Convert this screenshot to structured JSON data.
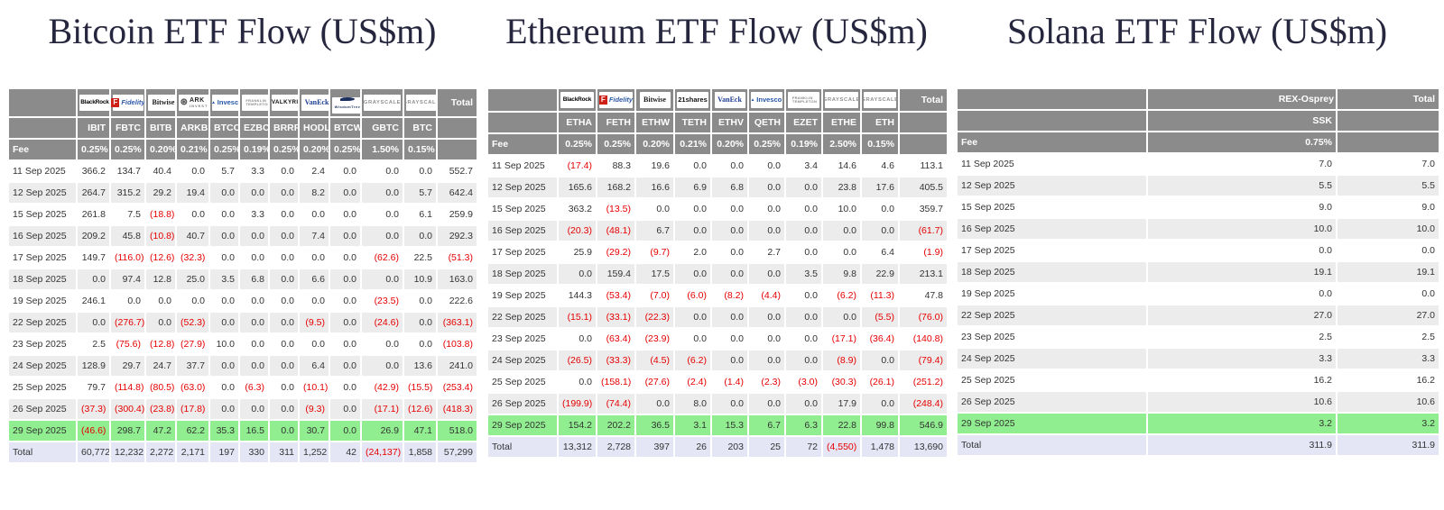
{
  "colors": {
    "header_gray": "#8b8b8b",
    "row_stripe": "#ececec",
    "highlight_green": "#90ee90",
    "total_row_lavender": "#e4e6f5",
    "negative_red": "#e60000",
    "title_navy": "#26263e"
  },
  "chart_data": [
    {
      "type": "table",
      "title": "Bitcoin ETF Flow (US$m)",
      "total_label": "Total",
      "fee_label": "Fee",
      "providers": [
        {
          "name": "BlackRock",
          "logo": "blackrock-logo"
        },
        {
          "name": "Fidelity",
          "logo": "fidelity-logo"
        },
        {
          "name": "Bitwise",
          "logo": "bitwise-logo"
        },
        {
          "name": "ARK Invest",
          "logo": "ark-invest-logo"
        },
        {
          "name": "Invesco",
          "logo": "invesco-logo"
        },
        {
          "name": "Franklin Templeton",
          "logo": "franklin-templeton-logo"
        },
        {
          "name": "Valkyrie",
          "logo": "valkyrie-logo"
        },
        {
          "name": "VanEck",
          "logo": "vaneck-logo"
        },
        {
          "name": "WisdomTree",
          "logo": "wisdomtree-logo"
        },
        {
          "name": "Grayscale",
          "logo": "grayscale-logo"
        },
        {
          "name": "Grayscale",
          "logo": "grayscale-logo"
        }
      ],
      "tickers": [
        "IBIT",
        "FBTC",
        "BITB",
        "ARKB",
        "BTCO",
        "EZBC",
        "BRRR",
        "HODL",
        "BTCW",
        "GBTC",
        "BTC"
      ],
      "fees": [
        "0.25%",
        "0.25%",
        "0.20%",
        "0.21%",
        "0.25%",
        "0.19%",
        "0.25%",
        "0.20%",
        "0.25%",
        "1.50%",
        "0.15%"
      ],
      "rows": [
        {
          "date": "11 Sep 2025",
          "values": [
            "366.2",
            "134.7",
            "40.4",
            "0.0",
            "5.7",
            "3.3",
            "0.0",
            "2.4",
            "0.0",
            "0.0",
            "0.0"
          ],
          "total": "552.7"
        },
        {
          "date": "12 Sep 2025",
          "values": [
            "264.7",
            "315.2",
            "29.2",
            "19.4",
            "0.0",
            "0.0",
            "0.0",
            "8.2",
            "0.0",
            "0.0",
            "5.7"
          ],
          "total": "642.4"
        },
        {
          "date": "15 Sep 2025",
          "values": [
            "261.8",
            "7.5",
            "(18.8)",
            "0.0",
            "0.0",
            "3.3",
            "0.0",
            "0.0",
            "0.0",
            "0.0",
            "6.1"
          ],
          "total": "259.9"
        },
        {
          "date": "16 Sep 2025",
          "values": [
            "209.2",
            "45.8",
            "(10.8)",
            "40.7",
            "0.0",
            "0.0",
            "0.0",
            "7.4",
            "0.0",
            "0.0",
            "0.0"
          ],
          "total": "292.3"
        },
        {
          "date": "17 Sep 2025",
          "values": [
            "149.7",
            "(116.0)",
            "(12.6)",
            "(32.3)",
            "0.0",
            "0.0",
            "0.0",
            "0.0",
            "0.0",
            "(62.6)",
            "22.5"
          ],
          "total": "(51.3)"
        },
        {
          "date": "18 Sep 2025",
          "values": [
            "0.0",
            "97.4",
            "12.8",
            "25.0",
            "3.5",
            "6.8",
            "0.0",
            "6.6",
            "0.0",
            "0.0",
            "10.9"
          ],
          "total": "163.0"
        },
        {
          "date": "19 Sep 2025",
          "values": [
            "246.1",
            "0.0",
            "0.0",
            "0.0",
            "0.0",
            "0.0",
            "0.0",
            "0.0",
            "0.0",
            "(23.5)",
            "0.0"
          ],
          "total": "222.6"
        },
        {
          "date": "22 Sep 2025",
          "values": [
            "0.0",
            "(276.7)",
            "0.0",
            "(52.3)",
            "0.0",
            "0.0",
            "0.0",
            "(9.5)",
            "0.0",
            "(24.6)",
            "0.0"
          ],
          "total": "(363.1)"
        },
        {
          "date": "23 Sep 2025",
          "values": [
            "2.5",
            "(75.6)",
            "(12.8)",
            "(27.9)",
            "10.0",
            "0.0",
            "0.0",
            "0.0",
            "0.0",
            "0.0",
            "0.0"
          ],
          "total": "(103.8)"
        },
        {
          "date": "24 Sep 2025",
          "values": [
            "128.9",
            "29.7",
            "24.7",
            "37.7",
            "0.0",
            "0.0",
            "0.0",
            "6.4",
            "0.0",
            "0.0",
            "13.6"
          ],
          "total": "241.0"
        },
        {
          "date": "25 Sep 2025",
          "values": [
            "79.7",
            "(114.8)",
            "(80.5)",
            "(63.0)",
            "0.0",
            "(6.3)",
            "0.0",
            "(10.1)",
            "0.0",
            "(42.9)",
            "(15.5)"
          ],
          "total": "(253.4)"
        },
        {
          "date": "26 Sep 2025",
          "values": [
            "(37.3)",
            "(300.4)",
            "(23.8)",
            "(17.8)",
            "0.0",
            "0.0",
            "0.0",
            "(9.3)",
            "0.0",
            "(17.1)",
            "(12.6)"
          ],
          "total": "(418.3)"
        },
        {
          "date": "29 Sep 2025",
          "highlight": true,
          "values": [
            "(46.6)",
            "298.7",
            "47.2",
            "62.2",
            "35.3",
            "16.5",
            "0.0",
            "30.7",
            "0.0",
            "26.9",
            "47.1"
          ],
          "total": "518.0"
        }
      ],
      "total_row": {
        "label": "Total",
        "values": [
          "60,772",
          "12,232",
          "2,272",
          "2,171",
          "197",
          "330",
          "311",
          "1,252",
          "42",
          "(24,137)",
          "1,858"
        ],
        "total": "57,299"
      }
    },
    {
      "type": "table",
      "title": "Ethereum ETF Flow (US$m)",
      "total_label": "Total",
      "fee_label": "Fee",
      "providers": [
        {
          "name": "BlackRock",
          "logo": "blackrock-logo"
        },
        {
          "name": "Fidelity",
          "logo": "fidelity-logo"
        },
        {
          "name": "Bitwise",
          "logo": "bitwise-logo"
        },
        {
          "name": "21shares",
          "logo": "21shares-logo"
        },
        {
          "name": "VanEck",
          "logo": "vaneck-logo"
        },
        {
          "name": "Invesco",
          "logo": "invesco-logo"
        },
        {
          "name": "Franklin Templeton",
          "logo": "franklin-templeton-logo"
        },
        {
          "name": "Grayscale",
          "logo": "grayscale-logo"
        },
        {
          "name": "Grayscale",
          "logo": "grayscale-logo"
        }
      ],
      "tickers": [
        "ETHA",
        "FETH",
        "ETHW",
        "TETH",
        "ETHV",
        "QETH",
        "EZET",
        "ETHE",
        "ETH"
      ],
      "fees": [
        "0.25%",
        "0.25%",
        "0.20%",
        "0.21%",
        "0.20%",
        "0.25%",
        "0.19%",
        "2.50%",
        "0.15%"
      ],
      "rows": [
        {
          "date": "11 Sep 2025",
          "values": [
            "(17.4)",
            "88.3",
            "19.6",
            "0.0",
            "0.0",
            "0.0",
            "3.4",
            "14.6",
            "4.6"
          ],
          "total": "113.1"
        },
        {
          "date": "12 Sep 2025",
          "values": [
            "165.6",
            "168.2",
            "16.6",
            "6.9",
            "6.8",
            "0.0",
            "0.0",
            "23.8",
            "17.6"
          ],
          "total": "405.5"
        },
        {
          "date": "15 Sep 2025",
          "values": [
            "363.2",
            "(13.5)",
            "0.0",
            "0.0",
            "0.0",
            "0.0",
            "0.0",
            "10.0",
            "0.0"
          ],
          "total": "359.7"
        },
        {
          "date": "16 Sep 2025",
          "values": [
            "(20.3)",
            "(48.1)",
            "6.7",
            "0.0",
            "0.0",
            "0.0",
            "0.0",
            "0.0",
            "0.0"
          ],
          "total": "(61.7)"
        },
        {
          "date": "17 Sep 2025",
          "values": [
            "25.9",
            "(29.2)",
            "(9.7)",
            "2.0",
            "0.0",
            "2.7",
            "0.0",
            "0.0",
            "6.4"
          ],
          "total": "(1.9)"
        },
        {
          "date": "18 Sep 2025",
          "values": [
            "0.0",
            "159.4",
            "17.5",
            "0.0",
            "0.0",
            "0.0",
            "3.5",
            "9.8",
            "22.9"
          ],
          "total": "213.1"
        },
        {
          "date": "19 Sep 2025",
          "values": [
            "144.3",
            "(53.4)",
            "(7.0)",
            "(6.0)",
            "(8.2)",
            "(4.4)",
            "0.0",
            "(6.2)",
            "(11.3)"
          ],
          "total": "47.8"
        },
        {
          "date": "22 Sep 2025",
          "values": [
            "(15.1)",
            "(33.1)",
            "(22.3)",
            "0.0",
            "0.0",
            "0.0",
            "0.0",
            "0.0",
            "(5.5)"
          ],
          "total": "(76.0)"
        },
        {
          "date": "23 Sep 2025",
          "values": [
            "0.0",
            "(63.4)",
            "(23.9)",
            "0.0",
            "0.0",
            "0.0",
            "0.0",
            "(17.1)",
            "(36.4)"
          ],
          "total": "(140.8)"
        },
        {
          "date": "24 Sep 2025",
          "values": [
            "(26.5)",
            "(33.3)",
            "(4.5)",
            "(6.2)",
            "0.0",
            "0.0",
            "0.0",
            "(8.9)",
            "0.0"
          ],
          "total": "(79.4)"
        },
        {
          "date": "25 Sep 2025",
          "values": [
            "0.0",
            "(158.1)",
            "(27.6)",
            "(2.4)",
            "(1.4)",
            "(2.3)",
            "(3.0)",
            "(30.3)",
            "(26.1)"
          ],
          "total": "(251.2)"
        },
        {
          "date": "26 Sep 2025",
          "values": [
            "(199.9)",
            "(74.4)",
            "0.0",
            "8.0",
            "0.0",
            "0.0",
            "0.0",
            "17.9",
            "0.0"
          ],
          "total": "(248.4)"
        },
        {
          "date": "29 Sep 2025",
          "highlight": true,
          "values": [
            "154.2",
            "202.2",
            "36.5",
            "3.1",
            "15.3",
            "6.7",
            "6.3",
            "22.8",
            "99.8"
          ],
          "total": "546.9"
        }
      ],
      "total_row": {
        "label": "Total",
        "values": [
          "13,312",
          "2,728",
          "397",
          "26",
          "203",
          "25",
          "72",
          "(4,550)",
          "1,478"
        ],
        "total": "13,690"
      }
    },
    {
      "type": "table",
      "title": "Solana ETF Flow (US$m)",
      "total_label": "Total",
      "fee_label": "Fee",
      "providers": [
        {
          "name": "REX-Osprey",
          "logo": null
        }
      ],
      "tickers": [
        "SSK"
      ],
      "fees": [
        "0.75%"
      ],
      "rows": [
        {
          "date": "11 Sep 2025",
          "values": [
            "7.0"
          ],
          "total": "7.0"
        },
        {
          "date": "12 Sep 2025",
          "values": [
            "5.5"
          ],
          "total": "5.5"
        },
        {
          "date": "15 Sep 2025",
          "values": [
            "9.0"
          ],
          "total": "9.0"
        },
        {
          "date": "16 Sep 2025",
          "values": [
            "10.0"
          ],
          "total": "10.0"
        },
        {
          "date": "17 Sep 2025",
          "values": [
            "0.0"
          ],
          "total": "0.0"
        },
        {
          "date": "18 Sep 2025",
          "values": [
            "19.1"
          ],
          "total": "19.1"
        },
        {
          "date": "19 Sep 2025",
          "values": [
            "0.0"
          ],
          "total": "0.0"
        },
        {
          "date": "22 Sep 2025",
          "values": [
            "27.0"
          ],
          "total": "27.0"
        },
        {
          "date": "23 Sep 2025",
          "values": [
            "2.5"
          ],
          "total": "2.5"
        },
        {
          "date": "24 Sep 2025",
          "values": [
            "3.3"
          ],
          "total": "3.3"
        },
        {
          "date": "25 Sep 2025",
          "values": [
            "16.2"
          ],
          "total": "16.2"
        },
        {
          "date": "26 Sep 2025",
          "values": [
            "10.6"
          ],
          "total": "10.6"
        },
        {
          "date": "29 Sep 2025",
          "highlight": true,
          "values": [
            "3.2"
          ],
          "total": "3.2"
        }
      ],
      "total_row": {
        "label": "Total",
        "values": [
          "311.9"
        ],
        "total": "311.9"
      }
    }
  ]
}
